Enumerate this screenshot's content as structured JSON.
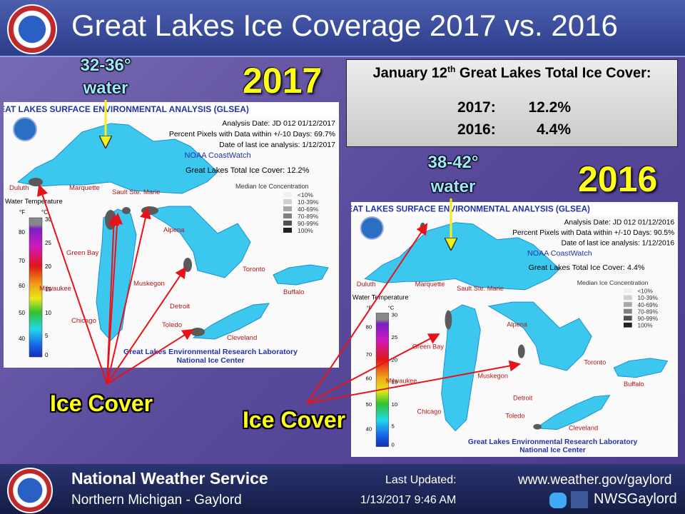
{
  "header": {
    "title": "Great Lakes Ice Coverage 2017 vs. 2016"
  },
  "summary": {
    "title_prefix": "January 12",
    "title_sup": "th",
    "title_suffix": " Great Lakes Total Ice Cover:",
    "rows": [
      [
        "2017:",
        "12.2%"
      ],
      [
        "2016:",
        "4.4%"
      ]
    ]
  },
  "maps": [
    {
      "year": "2017",
      "water_temp": "32-36°",
      "water_word": "water",
      "ice_label": "Ice Cover",
      "header": "GREAT LAKES SURFACE ENVIRONMENTAL ANALYSIS (GLSEA)",
      "lines": [
        "Analysis Date:  JD 012 01/12/2017",
        "Percent Pixels with Data within +/-10 Days:  69.7%",
        "Date of last ice analysis: 1/12/2017"
      ],
      "source": "NOAA CoastWatch",
      "total": "Great Lakes Total Ice Cover:  12.2%",
      "legend_title": "Median Ice Concentration",
      "legend": [
        "<10%",
        "10-39%",
        "40-69%",
        "70-89%",
        "90-99%",
        "100%"
      ],
      "temp_title": "Water Temperature",
      "f_unit": "°F",
      "c_unit": "°C",
      "f_ticks": [
        "80",
        "70",
        "60",
        "50",
        "40"
      ],
      "c_ticks": [
        "30",
        "25",
        "20",
        "15",
        "10",
        "5",
        "0"
      ],
      "cities": [
        "Duluth",
        "Marquette",
        "Sault Ste. Marie",
        "Green Bay",
        "Alpena",
        "Milwaukee",
        "Muskegon",
        "Chicago",
        "Detroit",
        "Toledo",
        "Toronto",
        "Buffalo",
        "Cleveland"
      ],
      "footer": [
        "Great Lakes Environmental Research Laboratory",
        "National Ice Center"
      ]
    },
    {
      "year": "2016",
      "water_temp": "38-42°",
      "water_word": "water",
      "ice_label": "Ice Cover",
      "header": "GREAT LAKES SURFACE ENVIRONMENTAL ANALYSIS (GLSEA)",
      "lines": [
        "Analysis Date:  JD 012 01/12/2016",
        "Percent Pixels with Data within +/-10 Days:  90.5%",
        "Date of last ice analysis: 1/12/2016"
      ],
      "source": "NOAA CoastWatch",
      "total": "Great Lakes Total Ice Cover:  4.4%",
      "legend_title": "Median Ice Concentration",
      "legend": [
        "<10%",
        "10-39%",
        "40-69%",
        "70-89%",
        "90-99%",
        "100%"
      ],
      "temp_title": "Water Temperature",
      "f_unit": "°F",
      "c_unit": "°C",
      "f_ticks": [
        "80",
        "70",
        "60",
        "50",
        "40"
      ],
      "c_ticks": [
        "30",
        "25",
        "20",
        "15",
        "10",
        "5",
        "0"
      ],
      "cities": [
        "Duluth",
        "Marquette",
        "Sault Ste. Marie",
        "Green Bay",
        "Alpena",
        "Milwaukee",
        "Muskegon",
        "Chicago",
        "Detroit",
        "Toledo",
        "Toronto",
        "Buffalo",
        "Cleveland"
      ],
      "footer": [
        "Great Lakes Environmental Research Laboratory",
        "National Ice Center"
      ]
    }
  ],
  "footer": {
    "org": "National Weather Service",
    "office": "Northern Michigan - Gaylord",
    "updated_label": "Last Updated:",
    "updated": "1/13/2017 9:46 AM",
    "url": "www.weather.gov/gaylord",
    "social": "NWSGaylord"
  }
}
